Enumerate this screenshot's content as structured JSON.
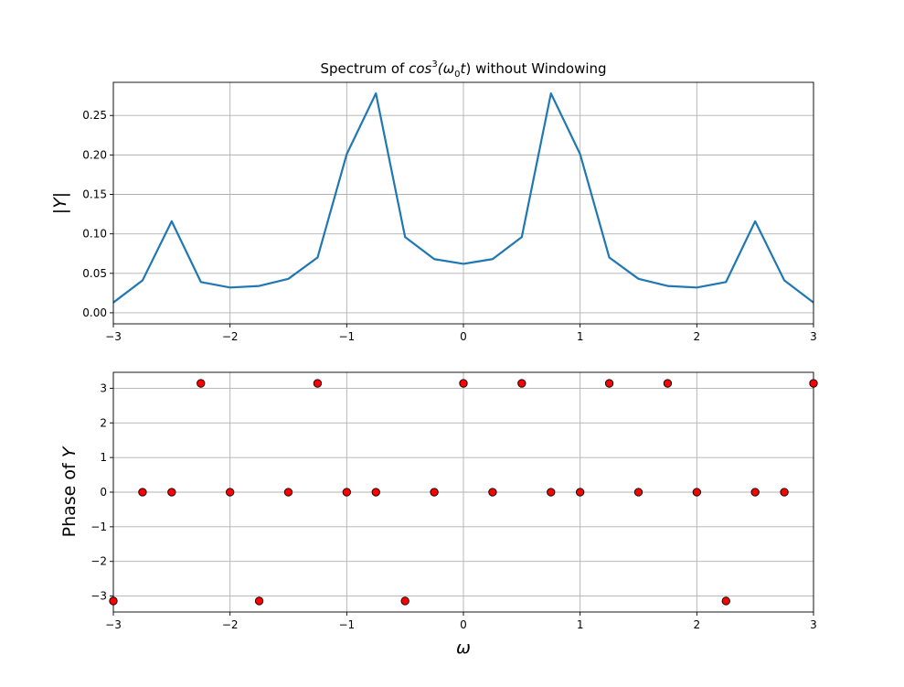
{
  "figure": {
    "title_prefix": "Spectrum of ",
    "title_math": "cos",
    "title_sup": "3",
    "title_mid": "(ω",
    "title_sub": "0",
    "title_var": "t",
    "title_close": ")",
    "title_suffix": " without Windowing"
  },
  "chart_data": [
    {
      "type": "line",
      "title": "Spectrum of cos³(ω₀t) without Windowing",
      "xlabel": "",
      "ylabel": "|Y|",
      "ylabel_var": "Y",
      "xlim": [
        -3,
        3
      ],
      "ylim": [
        -0.014,
        0.292
      ],
      "xticks": [
        -3,
        -2,
        -1,
        0,
        1,
        2,
        3
      ],
      "xtick_labels": [
        "−3",
        "−2",
        "−1",
        "0",
        "1",
        "2",
        "3"
      ],
      "yticks": [
        0.0,
        0.05,
        0.1,
        0.15,
        0.2,
        0.25
      ],
      "ytick_labels": [
        "0.00",
        "0.05",
        "0.10",
        "0.15",
        "0.20",
        "0.25"
      ],
      "grid": true,
      "color": "#1f77b4",
      "x": [
        -3,
        -2.75,
        -2.5,
        -2.25,
        -2,
        -1.75,
        -1.5,
        -1.25,
        -1,
        -0.75,
        -0.5,
        -0.25,
        0,
        0.25,
        0.5,
        0.75,
        1,
        1.25,
        1.5,
        1.75,
        2,
        2.25,
        2.5,
        2.75,
        3
      ],
      "y": [
        0.013,
        0.041,
        0.116,
        0.039,
        0.032,
        0.034,
        0.043,
        0.07,
        0.201,
        0.278,
        0.096,
        0.068,
        0.062,
        0.068,
        0.096,
        0.278,
        0.201,
        0.07,
        0.043,
        0.034,
        0.032,
        0.039,
        0.116,
        0.041,
        0.013
      ]
    },
    {
      "type": "scatter",
      "xlabel": "ω",
      "ylabel": "Phase of Y",
      "ylabel_prefix": "Phase of ",
      "ylabel_var": "Y",
      "xlim": [
        -3,
        3
      ],
      "ylim": [
        -3.46,
        3.46
      ],
      "xticks": [
        -3,
        -2,
        -1,
        0,
        1,
        2,
        3
      ],
      "xtick_labels": [
        "−3",
        "−2",
        "−1",
        "0",
        "1",
        "2",
        "3"
      ],
      "yticks": [
        -3,
        -2,
        -1,
        0,
        1,
        2,
        3
      ],
      "ytick_labels": [
        "−3",
        "−2",
        "−1",
        "0",
        "1",
        "2",
        "3"
      ],
      "grid": true,
      "marker_color": "#ff0000",
      "marker_edge": "#000000",
      "x": [
        -3,
        -2.75,
        -2.5,
        -2.25,
        -2,
        -1.75,
        -1.5,
        -1.25,
        -1,
        -0.75,
        -0.5,
        -0.25,
        0,
        0.25,
        0.5,
        0.75,
        1,
        1.25,
        1.5,
        1.75,
        2,
        2.25,
        2.5,
        2.75,
        3
      ],
      "y": [
        -3.1416,
        0,
        0,
        3.1416,
        0,
        -3.1416,
        0,
        3.1416,
        0,
        0,
        -3.1416,
        0,
        3.1416,
        0,
        3.1416,
        0,
        0,
        3.1416,
        0,
        3.1416,
        0,
        -3.1416,
        0,
        0,
        3.1416
      ]
    }
  ]
}
